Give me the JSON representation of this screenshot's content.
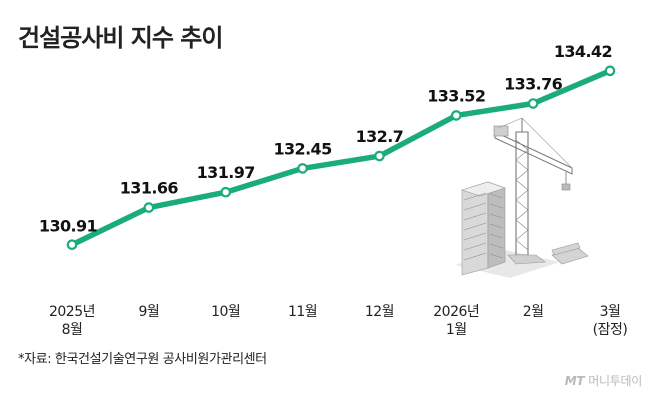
{
  "title": "건설공사비 지수 추이",
  "source": "*자료: 한국건설기술연구원 공사비원가관리센터",
  "watermark": {
    "brand": "MT",
    "text": "머니투데이"
  },
  "colors": {
    "line": "#1aac7a",
    "text": "#111111",
    "axis": "#333333"
  },
  "illustration": "construction-crane-and-buildings-icon",
  "chart_data": {
    "type": "line",
    "title": "건설공사비 지수 추이",
    "categories": [
      [
        "2025년",
        "8월"
      ],
      [
        "9월"
      ],
      [
        "10월"
      ],
      [
        "11월"
      ],
      [
        "12월"
      ],
      [
        "2026년",
        "1월"
      ],
      [
        "2월"
      ],
      [
        "3월",
        "(잠정)"
      ]
    ],
    "values": [
      130.91,
      131.66,
      131.97,
      132.45,
      132.7,
      133.52,
      133.76,
      134.42
    ],
    "value_labels": [
      "130.91",
      "131.66",
      "131.97",
      "132.45",
      "132.7",
      "133.52",
      "133.76",
      "134.42"
    ],
    "ylim": [
      130.4,
      134.8
    ],
    "grid": false,
    "legend": "none"
  }
}
